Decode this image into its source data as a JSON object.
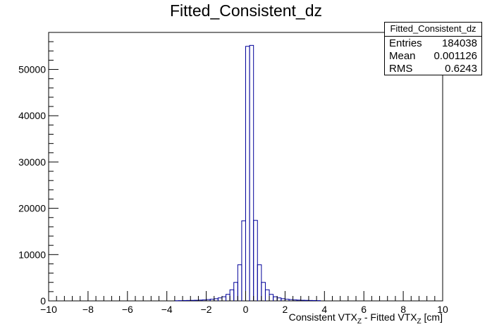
{
  "title": "Fitted_Consistent_dz",
  "stats": {
    "name": "Fitted_Consistent_dz",
    "entries_label": "Entries",
    "entries_value": "184038",
    "mean_label": "Mean",
    "mean_value": "0.001126",
    "rms_label": "RMS",
    "rms_value": "0.6243"
  },
  "xlabel": {
    "part1": "Consistent VTX",
    "sub1": "Z",
    "part2": " - Fitted VTX",
    "sub2": "Z",
    "part3": " [cm]"
  },
  "colors": {
    "histogram": "#000099",
    "axes": "#000000"
  },
  "chart_data": {
    "type": "histogram",
    "bin_width": 0.2,
    "xlim": [
      -10,
      10
    ],
    "ylim": [
      0,
      58000
    ],
    "xticks": [
      -10,
      -8,
      -6,
      -4,
      -2,
      0,
      2,
      4,
      6,
      8,
      10
    ],
    "yticks": [
      0,
      10000,
      20000,
      30000,
      40000,
      50000
    ],
    "bins": [
      {
        "x0": -3.6,
        "count": 40
      },
      {
        "x0": -3.4,
        "count": 55
      },
      {
        "x0": -3.2,
        "count": 70
      },
      {
        "x0": -3.0,
        "count": 90
      },
      {
        "x0": -2.8,
        "count": 110
      },
      {
        "x0": -2.6,
        "count": 140
      },
      {
        "x0": -2.4,
        "count": 170
      },
      {
        "x0": -2.2,
        "count": 210
      },
      {
        "x0": -2.0,
        "count": 280
      },
      {
        "x0": -1.8,
        "count": 360
      },
      {
        "x0": -1.6,
        "count": 480
      },
      {
        "x0": -1.4,
        "count": 650
      },
      {
        "x0": -1.2,
        "count": 900
      },
      {
        "x0": -1.0,
        "count": 1400
      },
      {
        "x0": -0.8,
        "count": 2400
      },
      {
        "x0": -0.6,
        "count": 4000
      },
      {
        "x0": -0.4,
        "count": 7800
      },
      {
        "x0": -0.2,
        "count": 17300
      },
      {
        "x0": 0.0,
        "count": 55000
      },
      {
        "x0": 0.2,
        "count": 55200
      },
      {
        "x0": 0.4,
        "count": 17400
      },
      {
        "x0": 0.6,
        "count": 7800
      },
      {
        "x0": 0.8,
        "count": 4000
      },
      {
        "x0": 1.0,
        "count": 2400
      },
      {
        "x0": 1.2,
        "count": 1400
      },
      {
        "x0": 1.4,
        "count": 900
      },
      {
        "x0": 1.6,
        "count": 650
      },
      {
        "x0": 1.8,
        "count": 480
      },
      {
        "x0": 2.0,
        "count": 360
      },
      {
        "x0": 2.2,
        "count": 280
      },
      {
        "x0": 2.4,
        "count": 210
      },
      {
        "x0": 2.6,
        "count": 170
      },
      {
        "x0": 2.8,
        "count": 140
      },
      {
        "x0": 3.0,
        "count": 110
      },
      {
        "x0": 3.2,
        "count": 90
      },
      {
        "x0": 3.4,
        "count": 70
      },
      {
        "x0": 3.6,
        "count": 55
      }
    ]
  }
}
